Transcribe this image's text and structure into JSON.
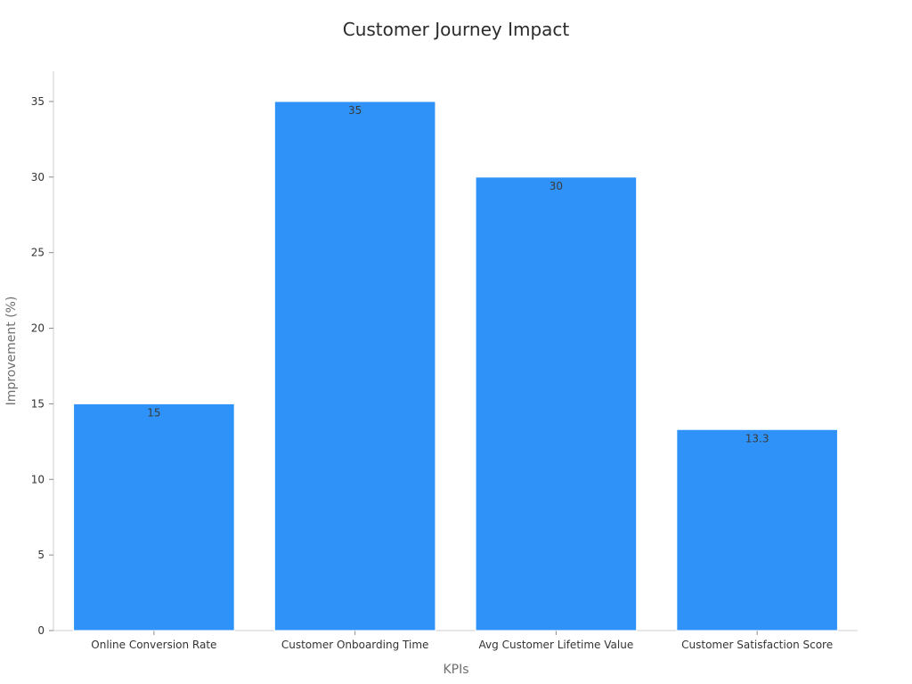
{
  "chart_data": {
    "type": "bar",
    "title": "Customer Journey Impact",
    "xlabel": "KPIs",
    "ylabel": "Improvement (%)",
    "categories": [
      "Online Conversion Rate",
      "Customer Onboarding Time",
      "Avg Customer Lifetime Value",
      "Customer Satisfaction Score"
    ],
    "values": [
      15,
      35,
      30,
      13.3
    ],
    "data_labels": [
      "15",
      "35",
      "30",
      "13.3"
    ],
    "ylim": [
      0,
      37
    ],
    "yticks": [
      0,
      5,
      10,
      15,
      20,
      25,
      30,
      35
    ],
    "grid": false,
    "legend": "none",
    "colors": {
      "bar": "#2f92f8",
      "bar_edge": "#ffffff"
    }
  }
}
